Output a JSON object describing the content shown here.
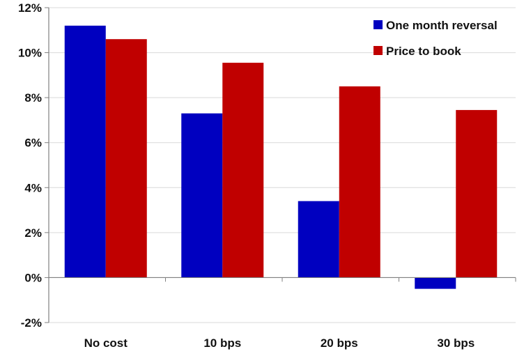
{
  "chart_data": {
    "type": "bar",
    "categories": [
      "No cost",
      "10 bps",
      "20 bps",
      "30 bps"
    ],
    "series": [
      {
        "name": "One month reversal",
        "color": "#0000c0",
        "values": [
          11.2,
          7.3,
          3.4,
          -0.5
        ]
      },
      {
        "name": "Price to book",
        "color": "#c00000",
        "values": [
          10.6,
          9.55,
          8.5,
          7.45
        ]
      }
    ],
    "ylim": [
      -2,
      12
    ],
    "yticks": [
      -2,
      0,
      2,
      4,
      6,
      8,
      10,
      12
    ],
    "ytick_labels": [
      "-2%",
      "0%",
      "2%",
      "4%",
      "6%",
      "8%",
      "10%",
      "12%"
    ],
    "grid": true,
    "legend_position": "top-right",
    "title": "",
    "xlabel": "",
    "ylabel": ""
  }
}
